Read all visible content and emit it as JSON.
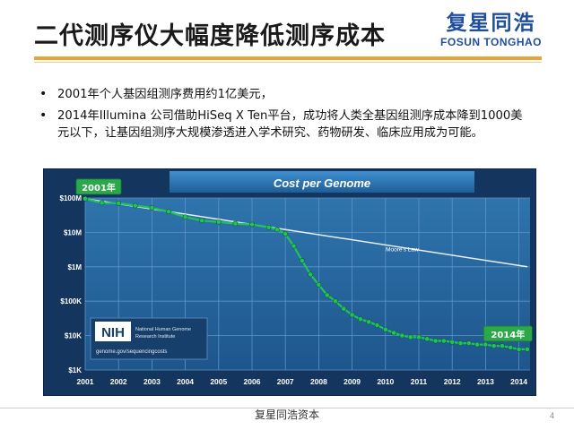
{
  "slide": {
    "title": "二代测序仪大幅度降低测序成本",
    "logo_cn": "复星同浩",
    "logo_en": "FOSUN TONGHAO",
    "page_number": "4",
    "footer": "复星同浩资本"
  },
  "bullets": [
    "2001年个人基因组测序费用约1亿美元，",
    "2014年Illumina 公司借助HiSeq X Ten平台，成功将人类全基因组测序成本降到1000美元以下，让基因组测序大规模渗透进入学术研究、药物研发、临床应用成为可能。"
  ],
  "colors": {
    "title_rule": "#e8a33a",
    "chart_bg": "#14365e",
    "genome_line": "#22c25a",
    "moore_line": "#e8eef5",
    "label_box": "#2aa84a"
  },
  "chart_data": {
    "type": "line",
    "title": "Cost per Genome",
    "y_scale": "log",
    "ylim": [
      1000,
      100000000
    ],
    "y_ticks": [
      1000,
      10000,
      100000,
      1000000,
      10000000,
      100000000
    ],
    "y_tick_labels": [
      "$1K",
      "$10K",
      "$100K",
      "$1M",
      "$10M",
      "$100M"
    ],
    "xlim": [
      "2001-09",
      "2015-01"
    ],
    "x_ticks": [
      "2001-09",
      "2002-09",
      "2003-09",
      "2004-09",
      "2005-09",
      "2006-09",
      "2007-09",
      "2008-09",
      "2009-09",
      "2010-09",
      "2011-09",
      "2012-09",
      "2013-09",
      "2014-09"
    ],
    "x_tick_labels": [
      "2001",
      "2002",
      "2003",
      "2004",
      "2005",
      "2006",
      "2007",
      "2008",
      "2009",
      "2010",
      "2011",
      "2012",
      "2013",
      "2014"
    ],
    "grid": true,
    "series": [
      {
        "name": "",
        "x": [
          "2001-09",
          "2002-03",
          "2002-09",
          "2003-03",
          "2003-09",
          "2004-03",
          "2004-09",
          "2005-03",
          "2005-09",
          "2006-03",
          "2006-09",
          "2007-03",
          "2007-06",
          "2007-09",
          "2007-12",
          "2008-03",
          "2008-06",
          "2008-09",
          "2008-12",
          "2009-03",
          "2009-06",
          "2009-09",
          "2009-12",
          "2010-03",
          "2010-06",
          "2010-09",
          "2010-12",
          "2011-03",
          "2011-06",
          "2011-09",
          "2011-12",
          "2012-03",
          "2012-06",
          "2012-09",
          "2012-12",
          "2013-03",
          "2013-06",
          "2013-09",
          "2013-12",
          "2014-03",
          "2014-06",
          "2014-09",
          "2014-12"
        ],
        "y": [
          95000000,
          72000000,
          70000000,
          60000000,
          52000000,
          40000000,
          28000000,
          22000000,
          20000000,
          18000000,
          17000000,
          14000000,
          12000000,
          9000000,
          4000000,
          1500000,
          600000,
          300000,
          150000,
          100000,
          60000,
          40000,
          30000,
          25000,
          20000,
          15000,
          12000,
          10000,
          9000,
          9000,
          8000,
          7000,
          7000,
          6500,
          6000,
          6000,
          5500,
          5500,
          5000,
          5000,
          4500,
          4000,
          4000
        ]
      },
      {
        "name": "Moore's Law",
        "x": [
          "2001-09",
          "2014-12"
        ],
        "y": [
          95000000,
          1000000
        ]
      }
    ],
    "annotations": [
      {
        "text": "2001年",
        "x": "2001-09",
        "y": 95000000
      },
      {
        "text": "2014年",
        "x": "2014-06",
        "y": 4500
      }
    ],
    "logo_box": {
      "mark": "NIH",
      "name_line1": "National Human Genome",
      "name_line2": "Research Institute",
      "url": "genome.gov/sequencingcosts"
    }
  }
}
